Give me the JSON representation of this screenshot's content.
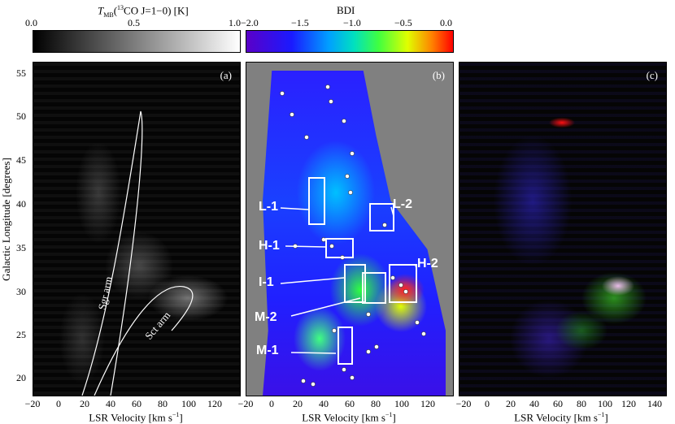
{
  "colorbars": {
    "tmb": {
      "title_prefix": "T",
      "title_sub": "MB",
      "title_rest": "(",
      "title_sup": "13",
      "title_rest2": "CO J=1−0) [K]",
      "ticks": [
        "0.0",
        "0.5",
        "1.0"
      ]
    },
    "bdi": {
      "title": "BDI",
      "ticks": [
        "−2.0",
        "−1.5",
        "−1.0",
        "−0.5",
        "0.0"
      ]
    }
  },
  "panels": {
    "a": {
      "tag": "(a)",
      "arm_labels": {
        "sgr": "Sgr arm",
        "sct": "Sct arm"
      }
    },
    "b": {
      "tag": "(b)",
      "regions": [
        "L-1",
        "L-2",
        "H-1",
        "H-2",
        "I-1",
        "M-2",
        "M-1"
      ]
    },
    "c": {
      "tag": "(c)"
    }
  },
  "axes": {
    "ylabel": "Galactic Longitude [degrees]",
    "yticks": [
      "55",
      "50",
      "45",
      "40",
      "35",
      "30",
      "25",
      "20"
    ],
    "xlabel": "LSR Velocity [km s",
    "xlabel_sup": "−1",
    "xlabel_close": "]",
    "xticks_ab": [
      "−20",
      "0",
      "20",
      "40",
      "60",
      "80",
      "100",
      "120"
    ],
    "xticks_c": [
      "−20",
      "0",
      "20",
      "40",
      "60",
      "80",
      "100",
      "120",
      "140"
    ]
  }
}
